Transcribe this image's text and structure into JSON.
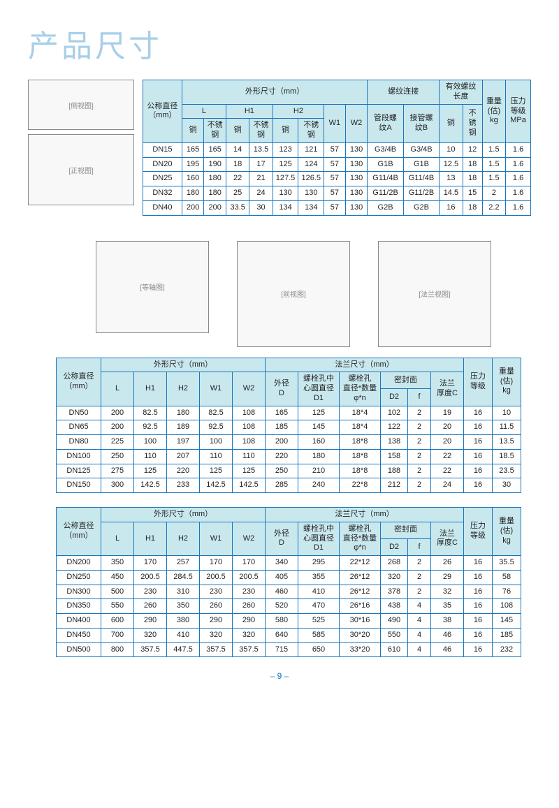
{
  "title": "产品尺寸",
  "page_number": "– 9 –",
  "colors": {
    "border": "#1a75bb",
    "header_bg": "#c9e8ee",
    "title": "#a8cfe8"
  },
  "table1": {
    "head": {
      "c1": "公称直径\n（mm）",
      "c2": "外形尺寸（mm）",
      "c3": "螺纹连接",
      "c4": "有效螺纹\n长度",
      "c5": "重量\n(估)\nkg",
      "c6": "压力\n等级\nMPa",
      "L": "L",
      "H1": "H1",
      "H2": "H2",
      "W1": "W1",
      "W2": "W2",
      "tA": "管段螺纹A",
      "tB": "接管螺纹B",
      "cu": "铜",
      "ss": "不锈钢"
    },
    "rows": [
      {
        "dn": "DN15",
        "Lc": "165",
        "Ls": "165",
        "H1c": "14",
        "H1s": "13.5",
        "H2c": "123",
        "H2s": "121",
        "W1": "57",
        "W2": "130",
        "tA": "G3/4B",
        "tB": "G3/4B",
        "elc": "10",
        "els": "12",
        "wt": "1.5",
        "p": "1.6"
      },
      {
        "dn": "DN20",
        "Lc": "195",
        "Ls": "190",
        "H1c": "18",
        "H1s": "17",
        "H2c": "125",
        "H2s": "124",
        "W1": "57",
        "W2": "130",
        "tA": "G1B",
        "tB": "G1B",
        "elc": "12.5",
        "els": "18",
        "wt": "1.5",
        "p": "1.6"
      },
      {
        "dn": "DN25",
        "Lc": "160",
        "Ls": "180",
        "H1c": "22",
        "H1s": "21",
        "H2c": "127.5",
        "H2s": "126.5",
        "W1": "57",
        "W2": "130",
        "tA": "G11/4B",
        "tB": "G11/4B",
        "elc": "13",
        "els": "18",
        "wt": "1.5",
        "p": "1.6"
      },
      {
        "dn": "DN32",
        "Lc": "180",
        "Ls": "180",
        "H1c": "25",
        "H1s": "24",
        "H2c": "130",
        "H2s": "130",
        "W1": "57",
        "W2": "130",
        "tA": "G11/2B",
        "tB": "G11/2B",
        "elc": "14.5",
        "els": "15",
        "wt": "2",
        "p": "1.6"
      },
      {
        "dn": "DN40",
        "Lc": "200",
        "Ls": "200",
        "H1c": "33.5",
        "H1s": "30",
        "H2c": "134",
        "H2s": "134",
        "W1": "57",
        "W2": "130",
        "tA": "G2B",
        "tB": "G2B",
        "elc": "16",
        "els": "18",
        "wt": "2.2",
        "p": "1.6"
      }
    ]
  },
  "table2": {
    "head": {
      "c1": "公称直径\n（mm）",
      "c2": "外形尺寸（mm）",
      "c3": "法兰尺寸（mm）",
      "c4": "压力\n等级",
      "c5": "重量\n(估)\nkg",
      "L": "L",
      "H1": "H1",
      "H2": "H2",
      "W1": "W1",
      "W2": "W2",
      "D": "外径\nD",
      "D1": "螺栓孔中\n心圆直径\nD1",
      "phi": "螺栓孔\n直径*数量\nφ*n",
      "seal": "密封面",
      "D2": "D2",
      "f": "f",
      "C": "法兰\n厚度C"
    },
    "rows": [
      {
        "dn": "DN50",
        "L": "200",
        "H1": "82.5",
        "H2": "180",
        "W1": "82.5",
        "W2": "108",
        "D": "165",
        "D1": "125",
        "phi": "18*4",
        "D2": "102",
        "f": "2",
        "C": "19",
        "pr": "16",
        "wt": "10"
      },
      {
        "dn": "DN65",
        "L": "200",
        "H1": "92.5",
        "H2": "189",
        "W1": "92.5",
        "W2": "108",
        "D": "185",
        "D1": "145",
        "phi": "18*4",
        "D2": "122",
        "f": "2",
        "C": "20",
        "pr": "16",
        "wt": "11.5"
      },
      {
        "dn": "DN80",
        "L": "225",
        "H1": "100",
        "H2": "197",
        "W1": "100",
        "W2": "108",
        "D": "200",
        "D1": "160",
        "phi": "18*8",
        "D2": "138",
        "f": "2",
        "C": "20",
        "pr": "16",
        "wt": "13.5"
      },
      {
        "dn": "DN100",
        "L": "250",
        "H1": "110",
        "H2": "207",
        "W1": "110",
        "W2": "110",
        "D": "220",
        "D1": "180",
        "phi": "18*8",
        "D2": "158",
        "f": "2",
        "C": "22",
        "pr": "16",
        "wt": "18.5"
      },
      {
        "dn": "DN125",
        "L": "275",
        "H1": "125",
        "H2": "220",
        "W1": "125",
        "W2": "125",
        "D": "250",
        "D1": "210",
        "phi": "18*8",
        "D2": "188",
        "f": "2",
        "C": "22",
        "pr": "16",
        "wt": "23.5"
      },
      {
        "dn": "DN150",
        "L": "300",
        "H1": "142.5",
        "H2": "233",
        "W1": "142.5",
        "W2": "142.5",
        "D": "285",
        "D1": "240",
        "phi": "22*8",
        "D2": "212",
        "f": "2",
        "C": "24",
        "pr": "16",
        "wt": "30"
      }
    ]
  },
  "table3": {
    "rows": [
      {
        "dn": "DN200",
        "L": "350",
        "H1": "170",
        "H2": "257",
        "W1": "170",
        "W2": "170",
        "D": "340",
        "D1": "295",
        "phi": "22*12",
        "D2": "268",
        "f": "2",
        "C": "26",
        "pr": "16",
        "wt": "35.5"
      },
      {
        "dn": "DN250",
        "L": "450",
        "H1": "200.5",
        "H2": "284.5",
        "W1": "200.5",
        "W2": "200.5",
        "D": "405",
        "D1": "355",
        "phi": "26*12",
        "D2": "320",
        "f": "2",
        "C": "29",
        "pr": "16",
        "wt": "58"
      },
      {
        "dn": "DN300",
        "L": "500",
        "H1": "230",
        "H2": "310",
        "W1": "230",
        "W2": "230",
        "D": "460",
        "D1": "410",
        "phi": "26*12",
        "D2": "378",
        "f": "2",
        "C": "32",
        "pr": "16",
        "wt": "76"
      },
      {
        "dn": "DN350",
        "L": "550",
        "H1": "260",
        "H2": "350",
        "W1": "260",
        "W2": "260",
        "D": "520",
        "D1": "470",
        "phi": "26*16",
        "D2": "438",
        "f": "4",
        "C": "35",
        "pr": "16",
        "wt": "108"
      },
      {
        "dn": "DN400",
        "L": "600",
        "H1": "290",
        "H2": "380",
        "W1": "290",
        "W2": "290",
        "D": "580",
        "D1": "525",
        "phi": "30*16",
        "D2": "490",
        "f": "4",
        "C": "38",
        "pr": "16",
        "wt": "145"
      },
      {
        "dn": "DN450",
        "L": "700",
        "H1": "320",
        "H2": "410",
        "W1": "320",
        "W2": "320",
        "D": "640",
        "D1": "585",
        "phi": "30*20",
        "D2": "550",
        "f": "4",
        "C": "46",
        "pr": "16",
        "wt": "185"
      },
      {
        "dn": "DN500",
        "L": "800",
        "H1": "357.5",
        "H2": "447.5",
        "W1": "357.5",
        "W2": "357.5",
        "D": "715",
        "D1": "650",
        "phi": "33*20",
        "D2": "610",
        "f": "4",
        "C": "46",
        "pr": "16",
        "wt": "232"
      }
    ]
  },
  "diagrams": {
    "d1a": "[侧视图]",
    "d1b": "[正视图]",
    "d2a": "[等轴图]",
    "d2b": "[前视图]",
    "d2c": "[法兰视图]"
  }
}
